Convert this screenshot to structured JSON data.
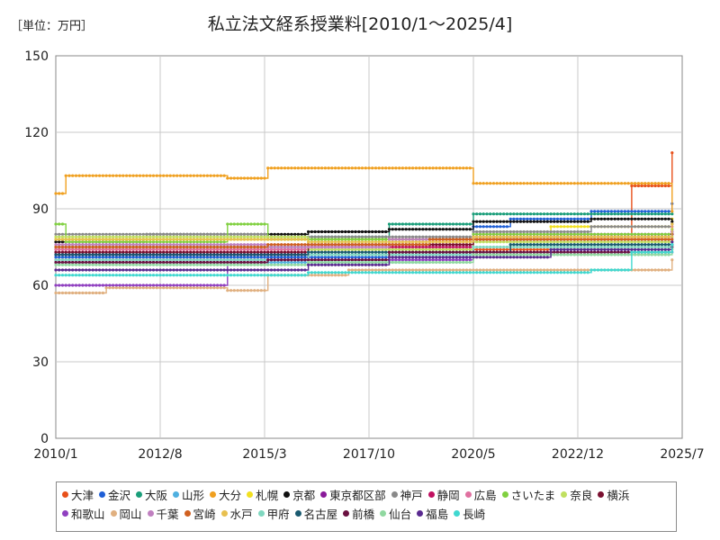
{
  "unit_label": "［単位：万円］",
  "chart_data": {
    "type": "line",
    "title": "私立法文経系授業料[2010/1～2025/4]",
    "xlabel": "",
    "ylabel": "",
    "xlim": [
      "2010/1",
      "2025/7"
    ],
    "ylim": [
      0,
      150
    ],
    "x_ticks": [
      "2010/1",
      "2012/8",
      "2015/3",
      "2017/10",
      "2020/5",
      "2022/12",
      "2025/7"
    ],
    "y_ticks": [
      0,
      30,
      60,
      90,
      120,
      150
    ],
    "grid": true,
    "legend_position": "bottom",
    "series": [
      {
        "name": "大津",
        "color": "#e8501a",
        "points": [
          [
            "2010/1",
            74
          ],
          [
            "2024/4",
            99
          ],
          [
            "2025/3",
            99
          ],
          [
            "2025/4",
            112
          ]
        ]
      },
      {
        "name": "金沢",
        "color": "#1f5fd6",
        "points": [
          [
            "2010/1",
            71
          ],
          [
            "2020/5",
            83
          ],
          [
            "2021/4",
            86
          ],
          [
            "2023/4",
            89
          ],
          [
            "2025/4",
            92
          ]
        ]
      },
      {
        "name": "大阪",
        "color": "#1a9e7a",
        "points": [
          [
            "2010/1",
            75
          ],
          [
            "2016/4",
            79
          ],
          [
            "2018/4",
            84
          ],
          [
            "2020/5",
            88
          ],
          [
            "2025/4",
            88
          ]
        ]
      },
      {
        "name": "山形",
        "color": "#4fb0e0",
        "points": [
          [
            "2010/1",
            69
          ],
          [
            "2019/4",
            73
          ],
          [
            "2025/4",
            73
          ]
        ]
      },
      {
        "name": "大分",
        "color": "#f0a020",
        "points": [
          [
            "2010/1",
            96
          ],
          [
            "2010/4",
            103
          ],
          [
            "2014/4",
            102
          ],
          [
            "2015/4",
            106
          ],
          [
            "2020/4",
            106
          ],
          [
            "2020/5",
            100
          ],
          [
            "2025/3",
            100
          ],
          [
            "2025/4",
            89
          ]
        ]
      },
      {
        "name": "札幌",
        "color": "#f2e020",
        "points": [
          [
            "2010/1",
            78
          ],
          [
            "2015/4",
            78
          ],
          [
            "2022/4",
            83
          ],
          [
            "2025/4",
            86
          ]
        ]
      },
      {
        "name": "京都",
        "color": "#111111",
        "points": [
          [
            "2010/1",
            77
          ],
          [
            "2012/4",
            80
          ],
          [
            "2016/4",
            81
          ],
          [
            "2018/4",
            82
          ],
          [
            "2020/5",
            85
          ],
          [
            "2023/4",
            86
          ],
          [
            "2025/4",
            85
          ]
        ]
      },
      {
        "name": "東京都区部",
        "color": "#8a1a9a",
        "points": [
          [
            "2010/1",
            72
          ],
          [
            "2016/4",
            76
          ],
          [
            "2019/4",
            78
          ],
          [
            "2022/4",
            80
          ],
          [
            "2025/4",
            81
          ]
        ]
      },
      {
        "name": "神戸",
        "color": "#8a8a8a",
        "points": [
          [
            "2010/1",
            80
          ],
          [
            "2015/4",
            79
          ],
          [
            "2020/5",
            81
          ],
          [
            "2023/4",
            83
          ],
          [
            "2025/4",
            84
          ]
        ]
      },
      {
        "name": "静岡",
        "color": "#c01060",
        "points": [
          [
            "2010/1",
            70
          ],
          [
            "2016/4",
            75
          ],
          [
            "2020/5",
            78
          ],
          [
            "2025/4",
            80
          ]
        ]
      },
      {
        "name": "広島",
        "color": "#e070a0",
        "points": [
          [
            "2010/1",
            74
          ],
          [
            "2017/4",
            76
          ],
          [
            "2020/5",
            80
          ],
          [
            "2025/4",
            83
          ]
        ]
      },
      {
        "name": "さいたま",
        "color": "#80d040",
        "points": [
          [
            "2010/1",
            84
          ],
          [
            "2010/4",
            77
          ],
          [
            "2014/4",
            84
          ],
          [
            "2015/4",
            78
          ],
          [
            "2020/5",
            80
          ],
          [
            "2025/4",
            82
          ]
        ]
      },
      {
        "name": "奈良",
        "color": "#c0e060",
        "points": [
          [
            "2010/1",
            79
          ],
          [
            "2016/4",
            74
          ],
          [
            "2020/5",
            77
          ],
          [
            "2025/4",
            79
          ]
        ]
      },
      {
        "name": "横浜",
        "color": "#7a1030",
        "points": [
          [
            "2010/1",
            73
          ],
          [
            "2016/4",
            76
          ],
          [
            "2020/5",
            79
          ],
          [
            "2025/4",
            80
          ]
        ]
      },
      {
        "name": "和歌山",
        "color": "#9040c0",
        "points": [
          [
            "2010/1",
            60
          ],
          [
            "2011/4",
            60
          ],
          [
            "2014/4",
            70
          ],
          [
            "2020/5",
            73
          ],
          [
            "2025/4",
            76
          ]
        ]
      },
      {
        "name": "岡山",
        "color": "#e0b080",
        "points": [
          [
            "2010/1",
            57
          ],
          [
            "2011/4",
            59
          ],
          [
            "2014/4",
            58
          ],
          [
            "2015/4",
            64
          ],
          [
            "2017/4",
            66
          ],
          [
            "2025/4",
            70
          ]
        ]
      },
      {
        "name": "千葉",
        "color": "#c080c0",
        "points": [
          [
            "2010/1",
            76
          ],
          [
            "2015/4",
            75
          ],
          [
            "2018/4",
            78
          ],
          [
            "2025/4",
            81
          ]
        ]
      },
      {
        "name": "宮崎",
        "color": "#d06020",
        "points": [
          [
            "2010/1",
            75
          ],
          [
            "2015/4",
            76
          ],
          [
            "2019/4",
            78
          ],
          [
            "2025/4",
            78
          ]
        ]
      },
      {
        "name": "水戸",
        "color": "#e8c050",
        "points": [
          [
            "2010/1",
            78
          ],
          [
            "2016/4",
            77
          ],
          [
            "2020/5",
            79
          ],
          [
            "2025/4",
            84
          ]
        ]
      },
      {
        "name": "甲府",
        "color": "#80d8c0",
        "points": [
          [
            "2010/1",
            70
          ],
          [
            "2016/4",
            72
          ],
          [
            "2020/5",
            75
          ],
          [
            "2025/4",
            77
          ]
        ]
      },
      {
        "name": "名古屋",
        "color": "#1a5a70",
        "points": [
          [
            "2010/1",
            72
          ],
          [
            "2016/4",
            73
          ],
          [
            "2021/4",
            76
          ],
          [
            "2025/4",
            76
          ]
        ]
      },
      {
        "name": "前橋",
        "color": "#6a1040",
        "points": [
          [
            "2010/1",
            69
          ],
          [
            "2015/4",
            70
          ],
          [
            "2018/4",
            73
          ],
          [
            "2025/4",
            75
          ]
        ]
      },
      {
        "name": "仙台",
        "color": "#90d8a0",
        "points": [
          [
            "2010/1",
            68
          ],
          [
            "2016/4",
            69
          ],
          [
            "2020/5",
            72
          ],
          [
            "2025/4",
            74
          ]
        ]
      },
      {
        "name": "福島",
        "color": "#5a2a90",
        "points": [
          [
            "2010/1",
            66
          ],
          [
            "2016/4",
            68
          ],
          [
            "2018/4",
            71
          ],
          [
            "2022/4",
            74
          ],
          [
            "2025/4",
            77
          ]
        ]
      },
      {
        "name": "長崎",
        "color": "#40d8d0",
        "points": [
          [
            "2010/1",
            64
          ],
          [
            "2016/4",
            65
          ],
          [
            "2019/4",
            65
          ],
          [
            "2023/4",
            66
          ],
          [
            "2024/4",
            73
          ],
          [
            "2025/4",
            76
          ]
        ]
      }
    ]
  }
}
